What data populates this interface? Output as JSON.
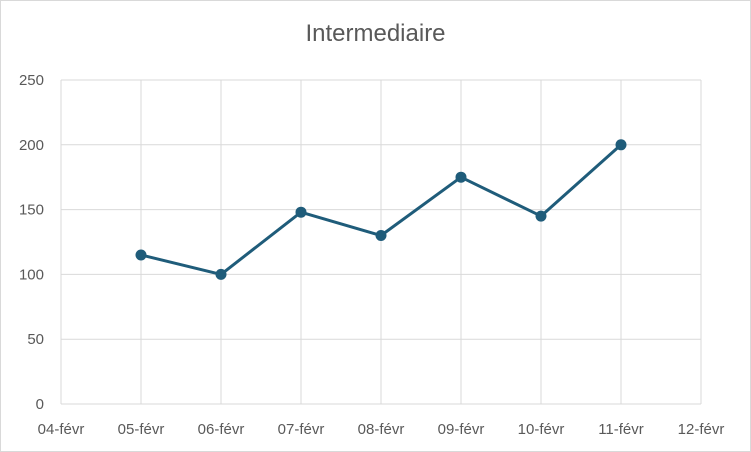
{
  "chart_data": {
    "type": "line",
    "title": "Intermediaire",
    "xlabel": "",
    "ylabel": "",
    "categories": [
      "04-févr",
      "05-févr",
      "06-févr",
      "07-févr",
      "08-févr",
      "09-févr",
      "10-févr",
      "11-févr",
      "12-févr"
    ],
    "yticks": [
      "0",
      "50",
      "100",
      "150",
      "200",
      "250"
    ],
    "ylim": [
      0,
      250
    ],
    "grid": true,
    "legend": "none",
    "series": [
      {
        "x": [
          "05-févr",
          "06-févr",
          "07-févr",
          "08-févr",
          "09-févr",
          "10-févr",
          "11-févr"
        ],
        "values": [
          115,
          100,
          148,
          130,
          175,
          145,
          200
        ],
        "color": "#1f5c7a"
      }
    ],
    "colors": {
      "grid": "#d9d9d9",
      "text": "#595959",
      "line": "#1f5c7a"
    }
  }
}
